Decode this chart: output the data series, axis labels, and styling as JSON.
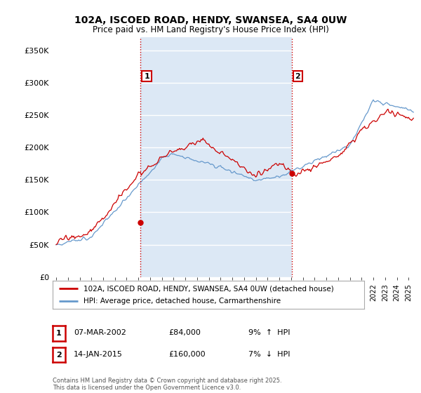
{
  "title": "102A, ISCOED ROAD, HENDY, SWANSEA, SA4 0UW",
  "subtitle": "Price paid vs. HM Land Registry's House Price Index (HPI)",
  "bg_color": "#ffffff",
  "plot_bg_color": "#dce8f5",
  "shade_between_sales": true,
  "shade_color": "#dce8f5",
  "outside_shade_color": "#ffffff",
  "grid_color": "#ffffff",
  "ylim": [
    0,
    370000
  ],
  "ytick_vals": [
    0,
    50000,
    100000,
    150000,
    200000,
    250000,
    300000,
    350000
  ],
  "ytick_labels": [
    "£0",
    "£50K",
    "£100K",
    "£150K",
    "£200K",
    "£250K",
    "£300K",
    "£350K"
  ],
  "xmin": 1994.7,
  "xmax": 2025.7,
  "sale1_date": 2002.18,
  "sale1_price": 84000,
  "sale2_date": 2015.04,
  "sale2_price": 160000,
  "vline1_color": "#cc0000",
  "vline2_color": "#cc0000",
  "vline_style": ":",
  "marker_color": "#cc0000",
  "legend_entries": [
    "102A, ISCOED ROAD, HENDY, SWANSEA, SA4 0UW (detached house)",
    "HPI: Average price, detached house, Carmarthenshire"
  ],
  "legend_colors": [
    "#cc0000",
    "#6699cc"
  ],
  "prop_color": "#cc0000",
  "hpi_color": "#6699cc",
  "ann1_box_color": "#cc0000",
  "ann2_box_color": "#cc0000",
  "footnote": "Contains HM Land Registry data © Crown copyright and database right 2025.\nThis data is licensed under the Open Government Licence v3.0."
}
